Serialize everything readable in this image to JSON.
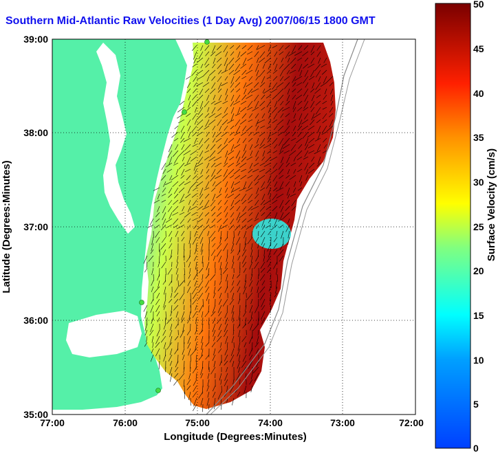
{
  "title": "Southern Mid-Atlantic Raw Velocities (1 Day Avg) 2007/06/15 1800 GMT",
  "xaxis": {
    "label": "Longitude (Degrees:Minutes)",
    "ticks": [
      "77:00",
      "76:00",
      "75:00",
      "74:00",
      "73:00",
      "72:00"
    ]
  },
  "yaxis": {
    "label": "Latitude (Degrees:Minutes)",
    "ticks": [
      "39:00",
      "38:00",
      "37:00",
      "36:00",
      "35:00"
    ]
  },
  "colorbar": {
    "label": "Surface Velocity (cm/s)",
    "ticks": [
      "50",
      "45",
      "40",
      "35",
      "30",
      "25",
      "20",
      "15",
      "10",
      "5",
      "0"
    ],
    "range": [
      0,
      50
    ]
  },
  "colors": {
    "land": "#55f0a8",
    "title": "#1010ee",
    "station": "#44dd44"
  }
}
